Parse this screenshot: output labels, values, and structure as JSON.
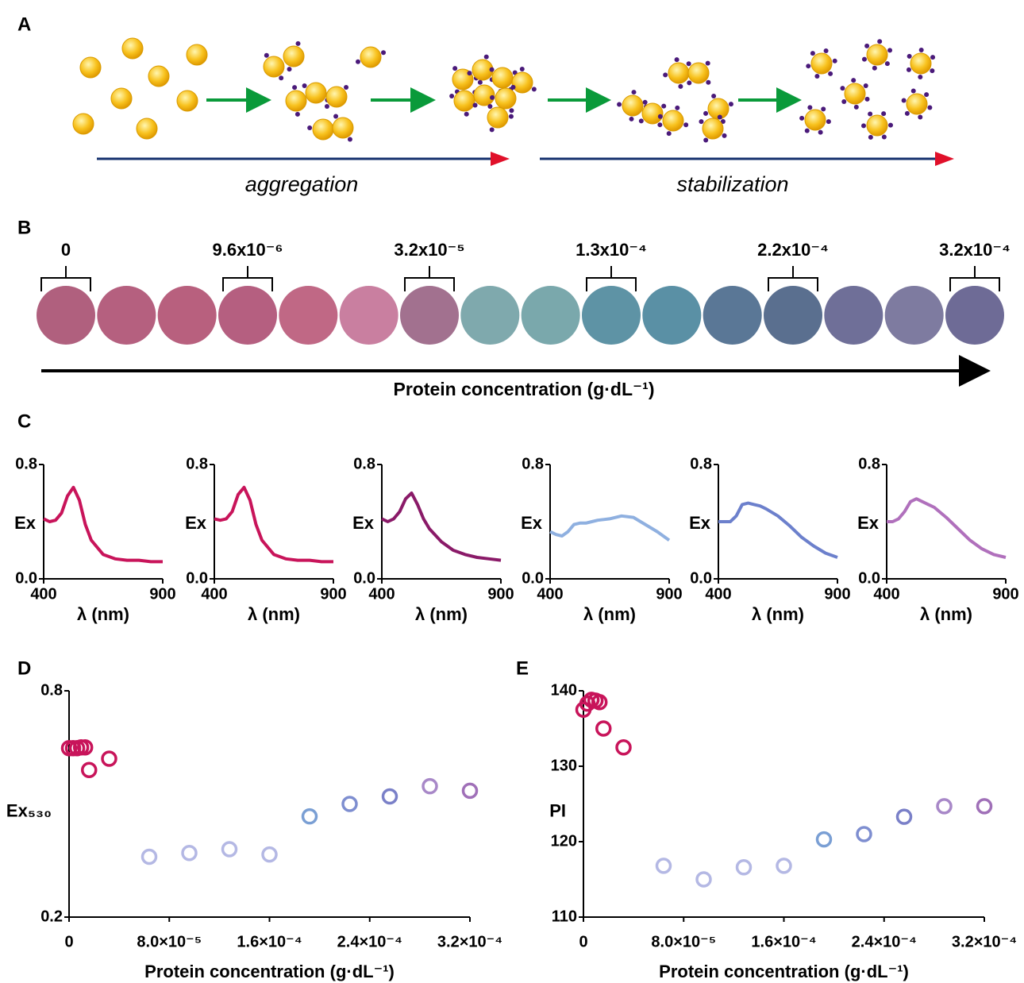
{
  "panel_labels": [
    "A",
    "B",
    "C",
    "D",
    "E"
  ],
  "panel_a": {
    "labels": [
      "aggregation",
      "stabilization"
    ]
  },
  "panel_b": {
    "labels": [
      "0",
      "9.6x10⁻⁶",
      "3.2x10⁻⁵",
      "1.3x10⁻⁴",
      "2.2x10⁻⁴",
      "3.2x10⁻⁴"
    ],
    "swatch_colors": [
      "#b0607e",
      "#b5607f",
      "#b8607e",
      "#b55f80",
      "#c06885",
      "#c97fa0",
      "#a2718f",
      "#7fa9ad",
      "#7aa8ac",
      "#5e93a5",
      "#5a90a5",
      "#5a7796",
      "#5a6f8f",
      "#6f6f98",
      "#7e7ba0",
      "#6e6b96"
    ],
    "axis_label": "Protein concentration (g·dL⁻¹)"
  },
  "chart_data": [
    {
      "type": "line",
      "x": [
        400,
        425,
        450,
        475,
        500,
        525,
        550,
        575,
        600,
        650,
        700,
        750,
        800,
        850,
        900
      ],
      "series": [
        {
          "color": "#c8145a",
          "values": [
            0.42,
            0.4,
            0.41,
            0.46,
            0.58,
            0.64,
            0.55,
            0.38,
            0.27,
            0.17,
            0.14,
            0.13,
            0.13,
            0.12,
            0.12
          ]
        }
      ],
      "xlim": [
        400,
        900
      ],
      "ylim": [
        0,
        0.8
      ],
      "xticks": [
        400,
        900
      ],
      "yticks": [
        {
          "value": 0,
          "label": "0.0"
        },
        0.8
      ],
      "xlabel": "λ (nm)",
      "ylabel": "Ex"
    },
    {
      "type": "line",
      "x": [
        400,
        425,
        450,
        475,
        500,
        525,
        550,
        575,
        600,
        650,
        700,
        750,
        800,
        850,
        900
      ],
      "series": [
        {
          "color": "#c8145a",
          "values": [
            0.42,
            0.41,
            0.42,
            0.47,
            0.59,
            0.64,
            0.55,
            0.38,
            0.27,
            0.17,
            0.14,
            0.13,
            0.13,
            0.12,
            0.12
          ]
        }
      ],
      "xlim": [
        400,
        900
      ],
      "ylim": [
        0,
        0.8
      ],
      "xticks": [
        400,
        900
      ],
      "yticks": [
        {
          "value": 0,
          "label": "0.0"
        },
        0.8
      ],
      "xlabel": "λ (nm)",
      "ylabel": "Ex"
    },
    {
      "type": "line",
      "x": [
        400,
        425,
        450,
        475,
        500,
        525,
        550,
        575,
        600,
        650,
        700,
        750,
        800,
        850,
        900
      ],
      "series": [
        {
          "color": "#8a1a68",
          "values": [
            0.42,
            0.4,
            0.42,
            0.47,
            0.56,
            0.6,
            0.52,
            0.42,
            0.35,
            0.26,
            0.2,
            0.17,
            0.15,
            0.14,
            0.13
          ]
        }
      ],
      "xlim": [
        400,
        900
      ],
      "ylim": [
        0,
        0.8
      ],
      "xticks": [
        400,
        900
      ],
      "yticks": [
        {
          "value": 0,
          "label": "0.0"
        },
        0.8
      ],
      "xlabel": "λ (nm)",
      "ylabel": "Ex"
    },
    {
      "type": "line",
      "x": [
        400,
        425,
        450,
        475,
        500,
        525,
        550,
        575,
        600,
        650,
        700,
        750,
        800,
        850,
        900
      ],
      "series": [
        {
          "color": "#8fb0e0",
          "values": [
            0.33,
            0.31,
            0.3,
            0.33,
            0.38,
            0.39,
            0.39,
            0.4,
            0.41,
            0.42,
            0.44,
            0.43,
            0.38,
            0.33,
            0.27
          ]
        }
      ],
      "xlim": [
        400,
        900
      ],
      "ylim": [
        0,
        0.8
      ],
      "xticks": [
        400,
        900
      ],
      "yticks": [
        {
          "value": 0,
          "label": "0.0"
        },
        0.8
      ],
      "xlabel": "λ (nm)",
      "ylabel": "Ex"
    },
    {
      "type": "line",
      "x": [
        400,
        425,
        450,
        475,
        500,
        525,
        550,
        575,
        600,
        650,
        700,
        750,
        800,
        850,
        900
      ],
      "series": [
        {
          "color": "#6c80cc",
          "values": [
            0.4,
            0.4,
            0.4,
            0.44,
            0.52,
            0.53,
            0.52,
            0.51,
            0.49,
            0.44,
            0.37,
            0.29,
            0.23,
            0.18,
            0.15
          ]
        }
      ],
      "xlim": [
        400,
        900
      ],
      "ylim": [
        0,
        0.8
      ],
      "xticks": [
        400,
        900
      ],
      "yticks": [
        {
          "value": 0,
          "label": "0.0"
        },
        0.8
      ],
      "xlabel": "λ (nm)",
      "ylabel": "Ex"
    },
    {
      "type": "line",
      "x": [
        400,
        425,
        450,
        475,
        500,
        525,
        550,
        575,
        600,
        650,
        700,
        750,
        800,
        850,
        900
      ],
      "series": [
        {
          "color": "#b070bc",
          "values": [
            0.4,
            0.4,
            0.42,
            0.47,
            0.54,
            0.56,
            0.54,
            0.52,
            0.5,
            0.43,
            0.35,
            0.27,
            0.21,
            0.17,
            0.15
          ]
        }
      ],
      "xlim": [
        400,
        900
      ],
      "ylim": [
        0,
        0.8
      ],
      "xticks": [
        400,
        900
      ],
      "yticks": [
        {
          "value": 0,
          "label": "0.0"
        },
        0.8
      ],
      "xlabel": "λ (nm)",
      "ylabel": "Ex"
    },
    {
      "type": "scatter",
      "x": [
        0,
        3.2e-06,
        6.4e-06,
        9.6e-06,
        1.28e-05,
        1.6e-05,
        3.2e-05,
        6.4e-05,
        9.6e-05,
        0.000128,
        0.00016,
        0.000192,
        0.000224,
        0.000256,
        0.000288,
        0.00032
      ],
      "series": [
        {
          "values": [
            0.648,
            0.648,
            0.648,
            0.65,
            0.65,
            0.59,
            0.62,
            0.36,
            0.37,
            0.38,
            0.366,
            0.467,
            0.5,
            0.52,
            0.547,
            0.535
          ],
          "point_colors": [
            "#c8145a",
            "#c8145a",
            "#c8145a",
            "#c8145a",
            "#c8145a",
            "#c8145a",
            "#c8145a",
            "#b4b8e4",
            "#b4b8e4",
            "#b4b8e4",
            "#b4b8e4",
            "#7a9fd4",
            "#7e8ed0",
            "#7a80c8",
            "#a888c8",
            "#a070b8"
          ]
        }
      ],
      "xlim": [
        0,
        0.00032
      ],
      "ylim": [
        0.2,
        0.8
      ],
      "xticks": [
        0,
        {
          "value": 8e-05,
          "label": "8.0×10⁻⁵"
        },
        {
          "value": 0.00016,
          "label": "1.6×10⁻⁴"
        },
        {
          "value": 0.00024,
          "label": "2.4×10⁻⁴"
        },
        {
          "value": 0.00032,
          "label": "3.2×10⁻⁴"
        }
      ],
      "yticks": [
        0.2,
        0.8
      ],
      "xlabel": "Protein concentration (g·dL⁻¹)",
      "ylabel": "Ex₅₃₀"
    },
    {
      "type": "scatter",
      "x": [
        0,
        3.2e-06,
        6.4e-06,
        9.6e-06,
        1.28e-05,
        1.6e-05,
        3.2e-05,
        6.4e-05,
        9.6e-05,
        0.000128,
        0.00016,
        0.000192,
        0.000224,
        0.000256,
        0.000288,
        0.00032
      ],
      "series": [
        {
          "values": [
            137.5,
            138.3,
            138.8,
            138.7,
            138.5,
            135.0,
            132.5,
            116.8,
            115.0,
            116.6,
            116.8,
            120.3,
            121.0,
            123.3,
            124.7,
            124.7
          ],
          "point_colors": [
            "#c8145a",
            "#c8145a",
            "#c8145a",
            "#c8145a",
            "#c8145a",
            "#c8145a",
            "#c8145a",
            "#b4b8e4",
            "#b4b8e4",
            "#b4b8e4",
            "#b4b8e4",
            "#7a9fd4",
            "#7e8ed0",
            "#7a80c8",
            "#a888c8",
            "#a070b8"
          ]
        }
      ],
      "xlim": [
        0,
        0.00032
      ],
      "ylim": [
        110,
        140
      ],
      "xticks": [
        0,
        {
          "value": 8e-05,
          "label": "8.0×10⁻⁵"
        },
        {
          "value": 0.00016,
          "label": "1.6×10⁻⁴"
        },
        {
          "value": 0.00024,
          "label": "2.4×10⁻⁴"
        },
        {
          "value": 0.00032,
          "label": "3.2×10⁻⁴"
        }
      ],
      "yticks": [
        110,
        120,
        130,
        140
      ],
      "xlabel": "Protein concentration (g·dL⁻¹)",
      "ylabel": "PI"
    }
  ]
}
